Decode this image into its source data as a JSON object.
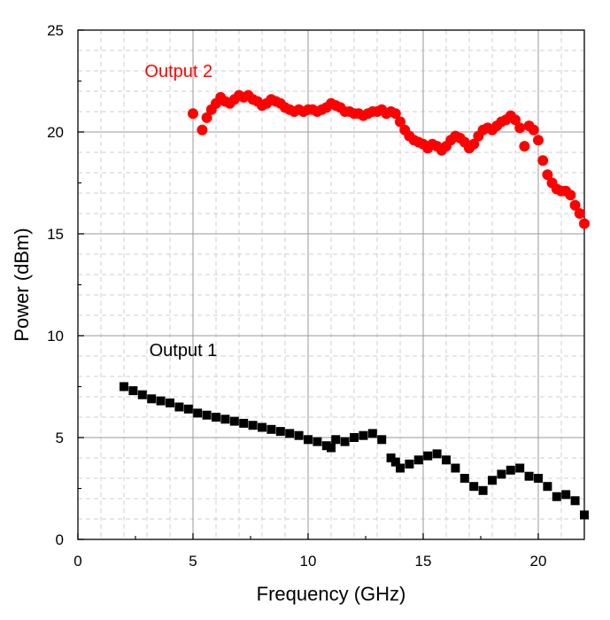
{
  "chart_data": {
    "type": "scatter",
    "title": "",
    "xlabel": "Frequency (GHz)",
    "ylabel": "Power (dBm)",
    "xlim": [
      0,
      22
    ],
    "ylim": [
      0,
      25
    ],
    "xticks": [
      "0",
      "5",
      "10",
      "15",
      "20"
    ],
    "yticks": [
      "0",
      "5",
      "10",
      "15",
      "20",
      "25"
    ],
    "grid": true,
    "series": [
      {
        "name": "Output 1",
        "color": "#000000",
        "marker": "square",
        "x": [
          2.0,
          2.4,
          2.8,
          3.2,
          3.6,
          4.0,
          4.4,
          4.8,
          5.2,
          5.6,
          6.0,
          6.4,
          6.8,
          7.2,
          7.6,
          8.0,
          8.4,
          8.8,
          9.2,
          9.6,
          10.0,
          10.4,
          10.8,
          11.0,
          11.2,
          11.6,
          12.0,
          12.4,
          12.8,
          13.2,
          13.6,
          13.8,
          14.0,
          14.4,
          14.8,
          15.2,
          15.6,
          16.0,
          16.4,
          16.8,
          17.2,
          17.6,
          18.0,
          18.4,
          18.8,
          19.2,
          19.6,
          20.0,
          20.4,
          20.8,
          21.2,
          21.6,
          22.0
        ],
        "values": [
          7.5,
          7.3,
          7.1,
          6.9,
          6.8,
          6.7,
          6.5,
          6.4,
          6.2,
          6.1,
          6.0,
          5.9,
          5.8,
          5.7,
          5.6,
          5.5,
          5.4,
          5.3,
          5.2,
          5.1,
          4.9,
          4.8,
          4.6,
          4.5,
          4.9,
          4.8,
          5.0,
          5.1,
          5.2,
          4.9,
          4.0,
          3.8,
          3.5,
          3.7,
          3.9,
          4.1,
          4.2,
          3.9,
          3.5,
          3.0,
          2.6,
          2.4,
          2.9,
          3.2,
          3.4,
          3.5,
          3.1,
          3.0,
          2.6,
          2.1,
          2.2,
          1.9,
          1.2
        ]
      },
      {
        "name": "Output 2",
        "color": "#ff0000",
        "marker": "circle",
        "x": [
          5.0,
          5.4,
          5.6,
          5.8,
          6.0,
          6.2,
          6.4,
          6.6,
          6.8,
          7.0,
          7.2,
          7.4,
          7.6,
          7.8,
          8.0,
          8.2,
          8.4,
          8.6,
          8.8,
          9.0,
          9.2,
          9.4,
          9.6,
          9.8,
          10.0,
          10.2,
          10.4,
          10.6,
          10.8,
          11.0,
          11.2,
          11.4,
          11.6,
          11.8,
          12.0,
          12.2,
          12.4,
          12.6,
          12.8,
          13.0,
          13.2,
          13.4,
          13.6,
          13.8,
          14.0,
          14.2,
          14.4,
          14.6,
          14.8,
          15.0,
          15.2,
          15.4,
          15.6,
          15.8,
          16.0,
          16.2,
          16.4,
          16.6,
          16.8,
          17.0,
          17.2,
          17.4,
          17.6,
          17.8,
          18.0,
          18.2,
          18.4,
          18.6,
          18.8,
          19.0,
          19.2,
          19.4,
          19.6,
          19.8,
          20.0,
          20.2,
          20.4,
          20.6,
          20.8,
          21.0,
          21.2,
          21.4,
          21.6,
          21.8,
          22.0
        ],
        "values": [
          20.9,
          20.1,
          20.7,
          21.1,
          21.4,
          21.7,
          21.5,
          21.4,
          21.6,
          21.8,
          21.7,
          21.8,
          21.6,
          21.5,
          21.3,
          21.4,
          21.6,
          21.5,
          21.4,
          21.2,
          21.1,
          21.0,
          21.1,
          21.0,
          21.1,
          21.1,
          21.0,
          21.1,
          21.2,
          21.4,
          21.3,
          21.2,
          21.0,
          21.0,
          20.9,
          20.9,
          20.8,
          20.9,
          21.0,
          21.0,
          21.1,
          20.9,
          21.0,
          20.9,
          20.5,
          20.1,
          19.8,
          19.6,
          19.5,
          19.4,
          19.2,
          19.4,
          19.3,
          19.1,
          19.3,
          19.6,
          19.8,
          19.7,
          19.5,
          19.2,
          19.4,
          19.8,
          20.1,
          20.2,
          20.1,
          20.3,
          20.5,
          20.6,
          20.8,
          20.6,
          20.2,
          19.3,
          20.3,
          20.1,
          19.6,
          18.6,
          17.9,
          17.5,
          17.2,
          17.1,
          17.1,
          16.9,
          16.4,
          16.0,
          15.5
        ]
      }
    ]
  }
}
